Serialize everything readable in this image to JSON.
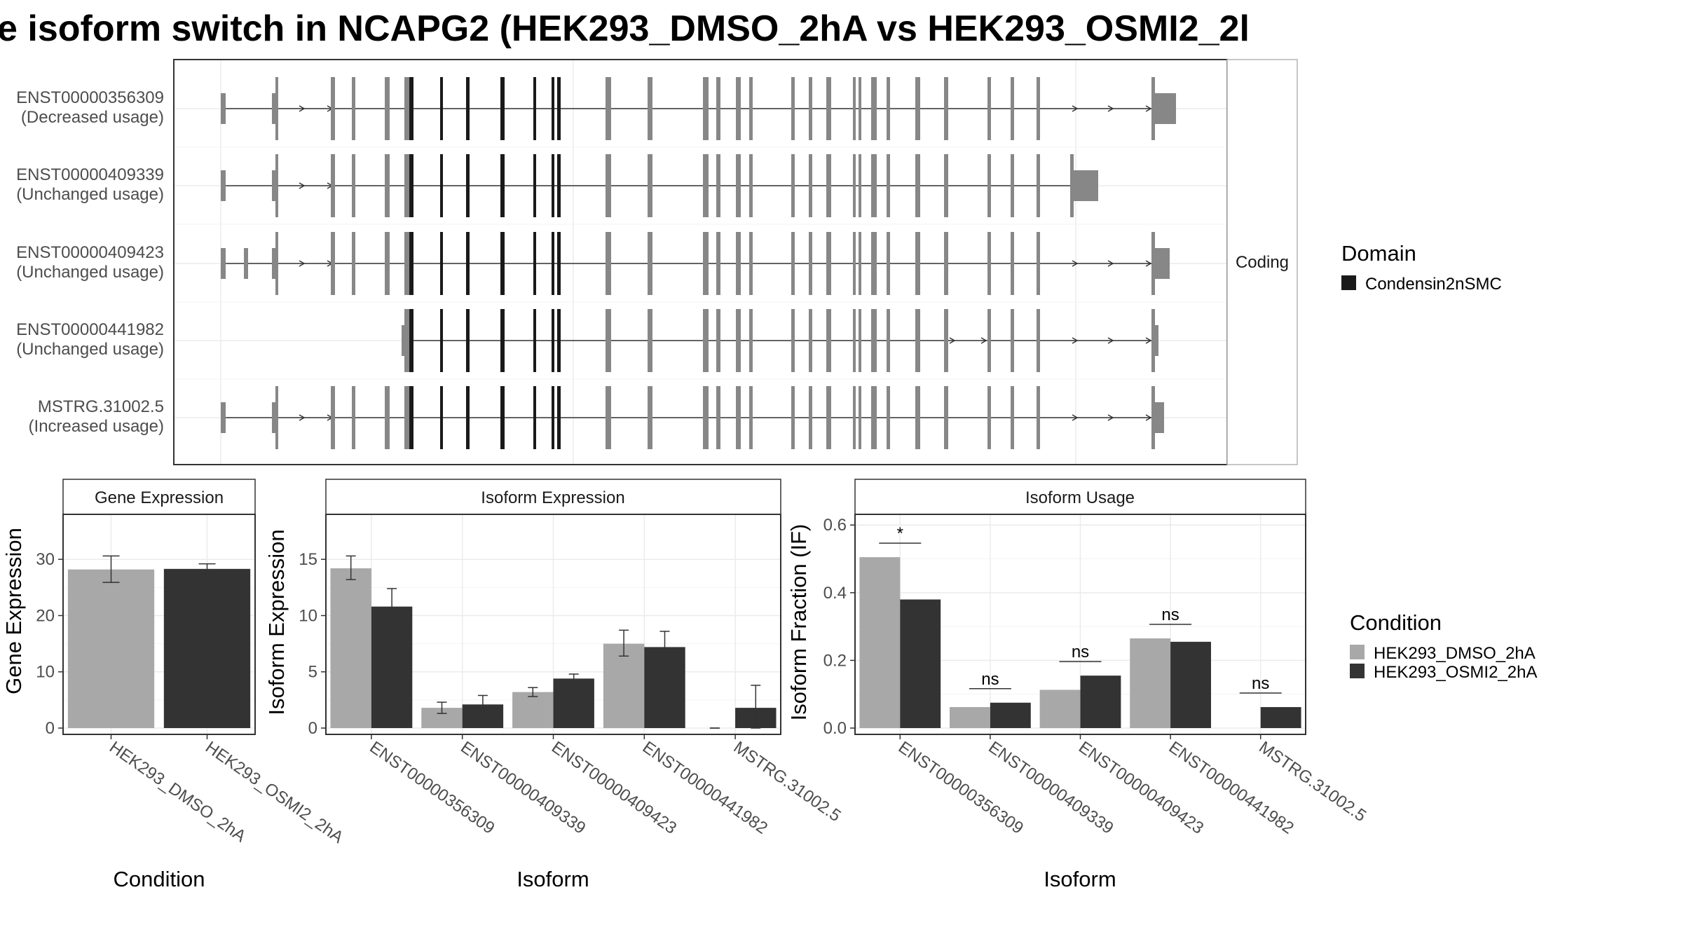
{
  "title": "e isoform switch in NCAPG2 (HEK293_DMSO_2hA vs HEK293_OSMI2_2l",
  "colors": {
    "dmso": "#a8a8a8",
    "osmi2": "#333333",
    "exon": "#878787",
    "domain": "#1a1a1a",
    "grid": "#ebebeb",
    "strip_bg": "#ffffff"
  },
  "legends": {
    "domain": {
      "title": "Domain",
      "items": [
        "Condensin2nSMC"
      ]
    },
    "condition": {
      "title": "Condition",
      "items": [
        "HEK293_DMSO_2hA",
        "HEK293_OSMI2_2hA"
      ]
    }
  },
  "chart_data": [
    {
      "type": "gene-structure",
      "facet_label": "Coding",
      "transcripts": [
        {
          "id": "ENST00000356309",
          "usage": "(Decreased usage)"
        },
        {
          "id": "ENST00000409339",
          "usage": "(Unchanged usage)"
        },
        {
          "id": "ENST00000409423",
          "usage": "(Unchanged usage)"
        },
        {
          "id": "ENST00000441982",
          "usage": "(Unchanged usage)"
        },
        {
          "id": "MSTRG.31002.5",
          "usage": "(Increased usage)"
        }
      ]
    },
    {
      "type": "bar",
      "title": "Gene Expression",
      "xlabel": "Condition",
      "ylabel": "Gene Expression",
      "ylim": [
        0,
        37
      ],
      "yticks": [
        0,
        10,
        20,
        30
      ],
      "categories": [
        "HEK293_DMSO_2hA",
        "HEK293_OSMI2_2hA"
      ],
      "values": [
        28.2,
        28.3
      ],
      "errors": [
        [
          25.9,
          30.6
        ],
        [
          27.4,
          29.2
        ]
      ]
    },
    {
      "type": "bar",
      "title": "Isoform Expression",
      "xlabel": "Isoform",
      "ylabel": "Isoform Expression",
      "ylim": [
        0,
        18.5
      ],
      "yticks": [
        0,
        5,
        10,
        15
      ],
      "categories": [
        "ENST00000356309",
        "ENST00000409339",
        "ENST00000409423",
        "ENST00000441982",
        "MSTRG.31002.5"
      ],
      "series": [
        {
          "name": "HEK293_DMSO_2hA",
          "values": [
            14.2,
            1.8,
            3.2,
            7.5,
            0.0
          ],
          "errors": [
            [
              13.2,
              15.3
            ],
            [
              1.3,
              2.3
            ],
            [
              2.8,
              3.6
            ],
            [
              6.4,
              8.7
            ],
            [
              0.0,
              0.0
            ]
          ]
        },
        {
          "name": "HEK293_OSMI2_2hA",
          "values": [
            10.8,
            2.1,
            4.4,
            7.2,
            1.8
          ],
          "errors": [
            [
              9.3,
              12.4
            ],
            [
              1.4,
              2.9
            ],
            [
              4.0,
              4.8
            ],
            [
              5.9,
              8.6
            ],
            [
              0.0,
              3.8
            ]
          ]
        }
      ]
    },
    {
      "type": "bar",
      "title": "Isoform Usage",
      "xlabel": "Isoform",
      "ylabel": "Isoform Fraction (IF)",
      "ylim": [
        0,
        0.615
      ],
      "yticks": [
        0.0,
        0.2,
        0.4,
        0.6
      ],
      "categories": [
        "ENST00000356309",
        "ENST00000409339",
        "ENST00000409423",
        "ENST00000441982",
        "MSTRG.31002.5"
      ],
      "series": [
        {
          "name": "HEK293_DMSO_2hA",
          "values": [
            0.505,
            0.062,
            0.113,
            0.265,
            0.0
          ]
        },
        {
          "name": "HEK293_OSMI2_2hA",
          "values": [
            0.38,
            0.075,
            0.155,
            0.255,
            0.062
          ]
        }
      ],
      "significance": [
        "*",
        "ns",
        "ns",
        "ns",
        "ns"
      ]
    }
  ]
}
